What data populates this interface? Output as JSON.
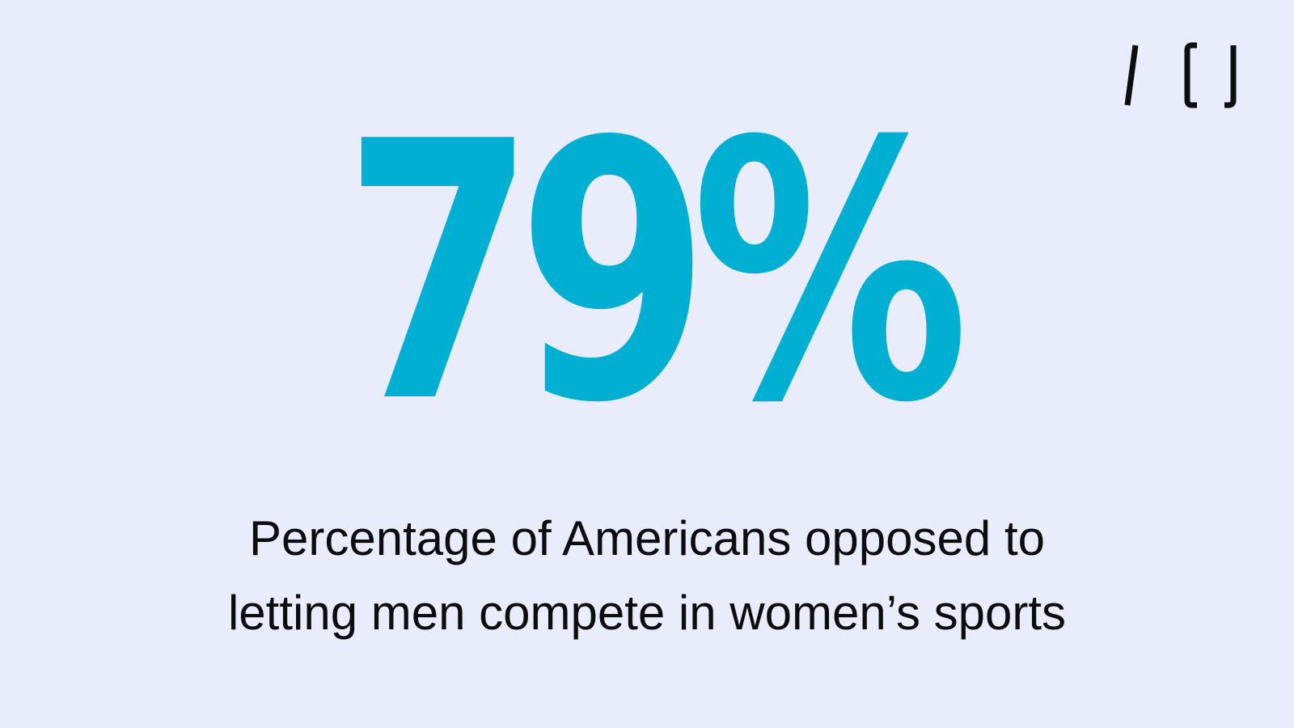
{
  "brand": {
    "logo_text": "/ CJ",
    "logo_icon": "cj-logo-icon",
    "text_color": "#0d0d10"
  },
  "stat": {
    "value": "79%",
    "color": "#00afd1"
  },
  "caption": {
    "line1": "Percentage of Americans opposed to",
    "line2": "letting men compete in women’s sports"
  },
  "background_color": "#e8ecfb"
}
